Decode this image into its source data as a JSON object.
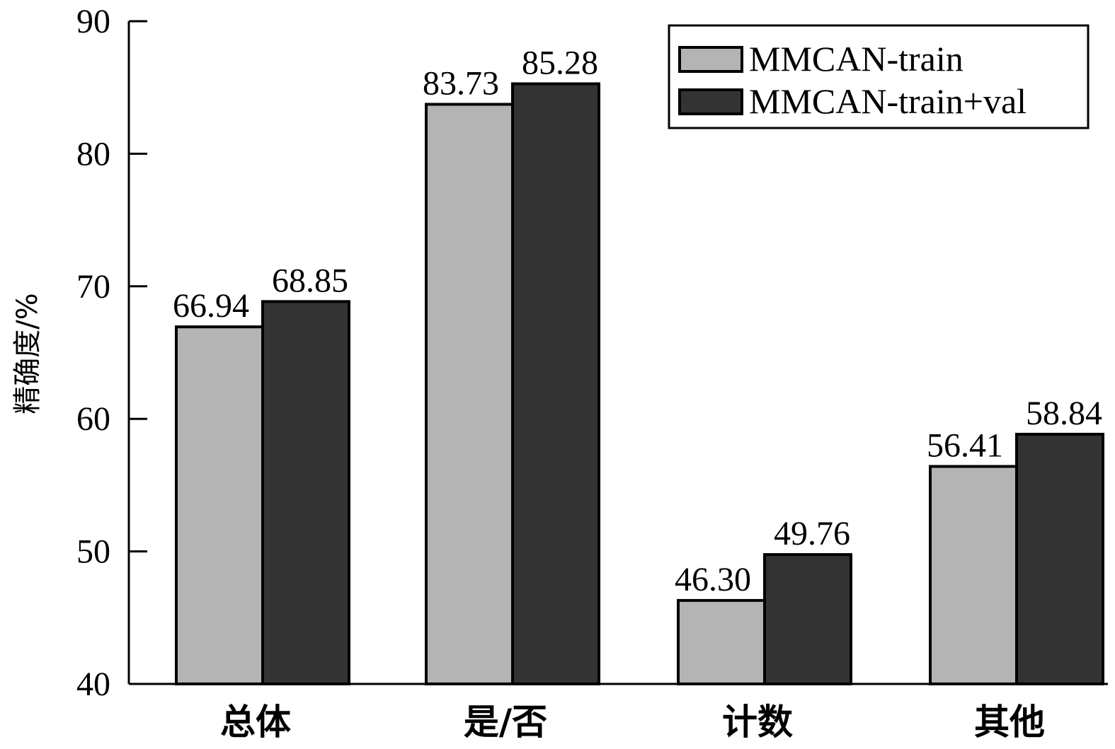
{
  "chart_data": {
    "type": "bar",
    "categories": [
      "总体",
      "是/否",
      "计数",
      "其他"
    ],
    "series": [
      {
        "name": "MMCAN-train",
        "values": [
          66.94,
          83.73,
          46.3,
          56.41
        ],
        "labels": [
          "66.94",
          "83.73",
          "46.30",
          "56.41"
        ],
        "color": "#b4b4b4"
      },
      {
        "name": "MMCAN-train+val",
        "values": [
          68.85,
          85.28,
          49.76,
          58.84
        ],
        "labels": [
          "68.85",
          "85.28",
          "49.76",
          "58.84"
        ],
        "color": "#333333"
      }
    ],
    "xlabel": "",
    "ylabel": "精确度/%",
    "ylim": [
      40,
      90
    ],
    "yticks": [
      40,
      50,
      60,
      70,
      80,
      90
    ],
    "grid": false,
    "legend_position": "top-right"
  }
}
